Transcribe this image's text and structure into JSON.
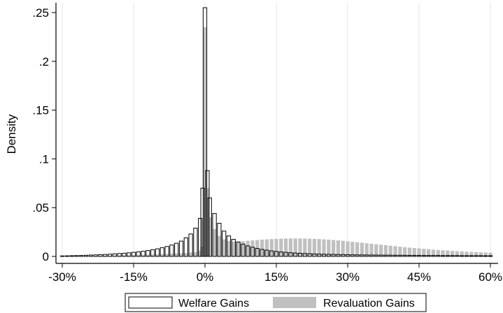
{
  "chart_data": {
    "type": "bar",
    "title": "",
    "xlabel": "",
    "ylabel": "Density",
    "xlim": [
      -30,
      60
    ],
    "ylim": [
      0,
      0.27
    ],
    "x_ticks": [
      {
        "value": -30,
        "label": "-30%"
      },
      {
        "value": -15,
        "label": "-15%"
      },
      {
        "value": 0,
        "label": "0%"
      },
      {
        "value": 15,
        "label": "15%"
      },
      {
        "value": 30,
        "label": "30%"
      },
      {
        "value": 45,
        "label": "45%"
      },
      {
        "value": 60,
        "label": "60%"
      }
    ],
    "y_ticks": [
      {
        "value": 0,
        "label": "0"
      },
      {
        "value": 0.05,
        "label": ".05"
      },
      {
        "value": 0.1,
        "label": ".1"
      },
      {
        "value": 0.15,
        "label": ".15"
      },
      {
        "value": 0.2,
        "label": ".2"
      },
      {
        "value": 0.25,
        "label": ".25"
      }
    ],
    "grid": "vertical lines at x ticks",
    "legend_position": "bottom",
    "series": [
      {
        "name": "Welfare Gains",
        "style": "outline",
        "color": "#000000",
        "points": [
          [
            -30,
            0.0005
          ],
          [
            -29,
            0.0006
          ],
          [
            -28,
            0.0008
          ],
          [
            -27,
            0.0009
          ],
          [
            -26,
            0.001
          ],
          [
            -25,
            0.0012
          ],
          [
            -24,
            0.0014
          ],
          [
            -23,
            0.0016
          ],
          [
            -22,
            0.0018
          ],
          [
            -21,
            0.002
          ],
          [
            -20,
            0.0023
          ],
          [
            -19,
            0.0026
          ],
          [
            -18,
            0.003
          ],
          [
            -17,
            0.0033
          ],
          [
            -16,
            0.0037
          ],
          [
            -15,
            0.0042
          ],
          [
            -14,
            0.0047
          ],
          [
            -13,
            0.0053
          ],
          [
            -12,
            0.006
          ],
          [
            -11,
            0.0068
          ],
          [
            -10,
            0.0078
          ],
          [
            -9,
            0.0089
          ],
          [
            -8,
            0.0102
          ],
          [
            -7,
            0.0117
          ],
          [
            -6,
            0.0135
          ],
          [
            -5,
            0.0157
          ],
          [
            -4,
            0.019
          ],
          [
            -3,
            0.023
          ],
          [
            -2,
            0.029
          ],
          [
            -1,
            0.039
          ],
          [
            -0.5,
            0.07
          ],
          [
            0,
            0.255
          ],
          [
            0.5,
            0.088
          ],
          [
            1,
            0.06
          ],
          [
            2,
            0.044
          ],
          [
            3,
            0.034
          ],
          [
            4,
            0.026
          ],
          [
            5,
            0.021
          ],
          [
            6,
            0.0175
          ],
          [
            7,
            0.0148
          ],
          [
            8,
            0.0126
          ],
          [
            9,
            0.0108
          ],
          [
            10,
            0.0094
          ],
          [
            11,
            0.0082
          ],
          [
            12,
            0.0072
          ],
          [
            13,
            0.0064
          ],
          [
            14,
            0.0057
          ],
          [
            15,
            0.0051
          ],
          [
            16,
            0.0046
          ],
          [
            17,
            0.0042
          ],
          [
            18,
            0.0038
          ],
          [
            19,
            0.0035
          ],
          [
            20,
            0.0032
          ],
          [
            21,
            0.003
          ],
          [
            22,
            0.0028
          ],
          [
            23,
            0.0026
          ],
          [
            24,
            0.0024
          ],
          [
            25,
            0.0023
          ],
          [
            26,
            0.0022
          ],
          [
            27,
            0.0021
          ],
          [
            28,
            0.002
          ],
          [
            29,
            0.0019
          ],
          [
            30,
            0.0018
          ],
          [
            31,
            0.0017
          ],
          [
            32,
            0.0016
          ],
          [
            33,
            0.0016
          ],
          [
            34,
            0.0015
          ],
          [
            35,
            0.0015
          ],
          [
            36,
            0.0014
          ],
          [
            37,
            0.0014
          ],
          [
            38,
            0.0013
          ],
          [
            39,
            0.0013
          ],
          [
            40,
            0.0012
          ],
          [
            41,
            0.0012
          ],
          [
            42,
            0.0012
          ],
          [
            43,
            0.0011
          ],
          [
            44,
            0.0011
          ],
          [
            45,
            0.0011
          ],
          [
            46,
            0.001
          ],
          [
            47,
            0.001
          ],
          [
            48,
            0.001
          ],
          [
            49,
            0.001
          ],
          [
            50,
            0.0009
          ],
          [
            51,
            0.0009
          ],
          [
            52,
            0.0009
          ],
          [
            53,
            0.0009
          ],
          [
            54,
            0.0008
          ],
          [
            55,
            0.0008
          ],
          [
            56,
            0.0008
          ],
          [
            57,
            0.0008
          ],
          [
            58,
            0.0008
          ],
          [
            59,
            0.0007
          ],
          [
            60,
            0.0007
          ]
        ]
      },
      {
        "name": "Revaluation Gains",
        "style": "filled",
        "color": "#c0c0c0",
        "points": [
          [
            -30,
            0.0003
          ],
          [
            -29,
            0.0003
          ],
          [
            -28,
            0.0004
          ],
          [
            -27,
            0.0004
          ],
          [
            -26,
            0.0005
          ],
          [
            -25,
            0.0005
          ],
          [
            -24,
            0.0006
          ],
          [
            -23,
            0.0006
          ],
          [
            -22,
            0.0007
          ],
          [
            -21,
            0.0008
          ],
          [
            -20,
            0.0009
          ],
          [
            -19,
            0.001
          ],
          [
            -18,
            0.0011
          ],
          [
            -17,
            0.0012
          ],
          [
            -16,
            0.0013
          ],
          [
            -15,
            0.0014
          ],
          [
            -14,
            0.0015
          ],
          [
            -13,
            0.0017
          ],
          [
            -12,
            0.0019
          ],
          [
            -11,
            0.002
          ],
          [
            -10,
            0.0022
          ],
          [
            -9,
            0.0024
          ],
          [
            -8,
            0.0026
          ],
          [
            -7,
            0.0028
          ],
          [
            -6,
            0.003
          ],
          [
            -5,
            0.0032
          ],
          [
            -4,
            0.0035
          ],
          [
            -3,
            0.004
          ],
          [
            -2,
            0.0045
          ],
          [
            -1,
            0.006
          ],
          [
            -0.5,
            0.01
          ],
          [
            0,
            0.235
          ],
          [
            0.5,
            0.07
          ],
          [
            1,
            0.04
          ],
          [
            2,
            0.028
          ],
          [
            3,
            0.021
          ],
          [
            4,
            0.0175
          ],
          [
            5,
            0.0158
          ],
          [
            6,
            0.0152
          ],
          [
            7,
            0.0152
          ],
          [
            8,
            0.0156
          ],
          [
            9,
            0.016
          ],
          [
            10,
            0.0164
          ],
          [
            11,
            0.0168
          ],
          [
            12,
            0.0172
          ],
          [
            13,
            0.0175
          ],
          [
            14,
            0.0178
          ],
          [
            15,
            0.018
          ],
          [
            16,
            0.0182
          ],
          [
            17,
            0.0183
          ],
          [
            18,
            0.0184
          ],
          [
            19,
            0.0184
          ],
          [
            20,
            0.0184
          ],
          [
            21,
            0.0183
          ],
          [
            22,
            0.0182
          ],
          [
            23,
            0.018
          ],
          [
            24,
            0.0178
          ],
          [
            25,
            0.0175
          ],
          [
            26,
            0.0172
          ],
          [
            27,
            0.0168
          ],
          [
            28,
            0.0164
          ],
          [
            29,
            0.016
          ],
          [
            30,
            0.0155
          ],
          [
            31,
            0.015
          ],
          [
            32,
            0.0145
          ],
          [
            33,
            0.014
          ],
          [
            34,
            0.0135
          ],
          [
            35,
            0.013
          ],
          [
            36,
            0.0125
          ],
          [
            37,
            0.012
          ],
          [
            38,
            0.0115
          ],
          [
            39,
            0.011
          ],
          [
            40,
            0.0105
          ],
          [
            41,
            0.01
          ],
          [
            42,
            0.0095
          ],
          [
            43,
            0.009
          ],
          [
            44,
            0.0086
          ],
          [
            45,
            0.0082
          ],
          [
            46,
            0.0078
          ],
          [
            47,
            0.0074
          ],
          [
            48,
            0.007
          ],
          [
            49,
            0.0066
          ],
          [
            50,
            0.0063
          ],
          [
            51,
            0.006
          ],
          [
            52,
            0.0057
          ],
          [
            53,
            0.0054
          ],
          [
            54,
            0.0051
          ],
          [
            55,
            0.0048
          ],
          [
            56,
            0.0046
          ],
          [
            57,
            0.0044
          ],
          [
            58,
            0.0042
          ],
          [
            59,
            0.004
          ],
          [
            60,
            0.0038
          ]
        ]
      }
    ]
  }
}
